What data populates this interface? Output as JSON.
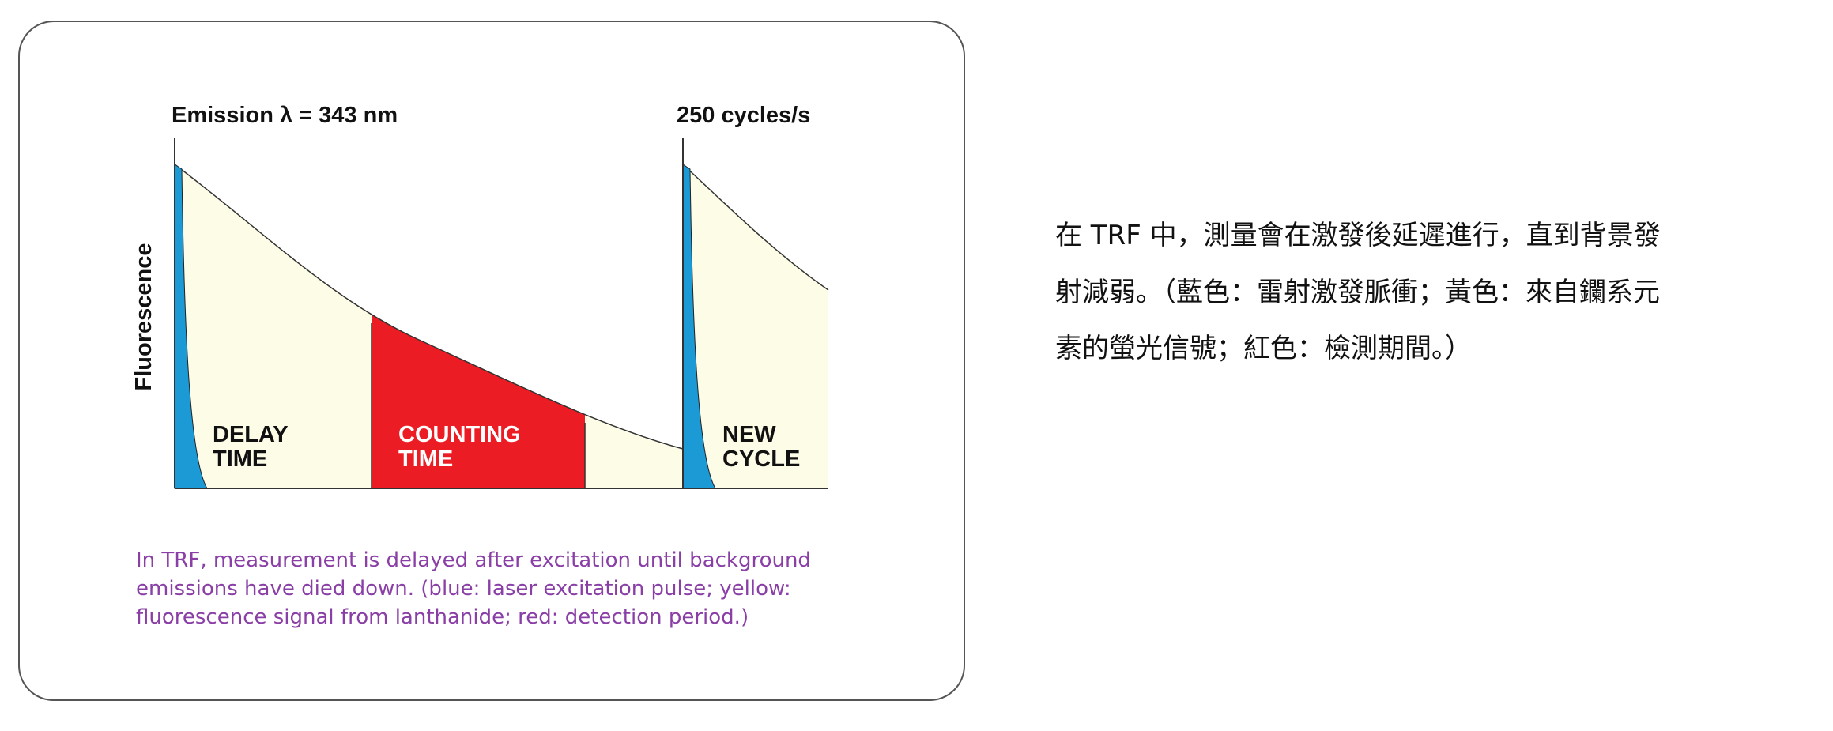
{
  "diagram": {
    "emission_label": "Emission λ = 343 nm",
    "cycles_label": "250 cycles/s",
    "y_axis_label": "Fluorescence",
    "delay_label": [
      "DELAY",
      "TIME"
    ],
    "counting_label": [
      "COUNTING",
      "TIME"
    ],
    "new_cycle_label": [
      "NEW",
      "CYCLE"
    ],
    "caption": [
      "In TRF, measurement is delayed after excitation until background",
      "emissions have died down. (blue: laser excitation pulse; yellow:",
      "fluorescence signal from lanthanide; red: detection period.)"
    ]
  },
  "description": [
    "在 TRF 中，測量會在激發後延遲進行，直到背景發",
    "射減弱。（藍色：雷射激發脈衝；黃色：來自鑭系元",
    "素的螢光信號；紅色：檢測期間。）"
  ]
}
